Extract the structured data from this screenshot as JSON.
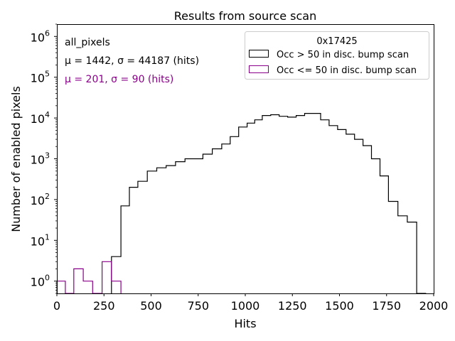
{
  "chart_data": {
    "type": "histogram",
    "title": "Results from source scan",
    "xlabel": "Hits",
    "ylabel": "Number of enabled pixels",
    "xlim": [
      0,
      2000
    ],
    "ylim": [
      0.5,
      2000000
    ],
    "yscale": "log",
    "x_ticks": [
      0,
      250,
      500,
      750,
      1000,
      1250,
      1500,
      1750,
      2000
    ],
    "x_tick_labels": [
      "0",
      "250",
      "500",
      "750",
      "1000",
      "1250",
      "1500",
      "1750",
      "2000"
    ],
    "y_tick_labels": [
      {
        "base": "10",
        "exp": "0",
        "value": 1
      },
      {
        "base": "10",
        "exp": "1",
        "value": 10
      },
      {
        "base": "10",
        "exp": "2",
        "value": 100
      },
      {
        "base": "10",
        "exp": "3",
        "value": 1000
      },
      {
        "base": "10",
        "exp": "4",
        "value": 10000
      },
      {
        "base": "10",
        "exp": "5",
        "value": 100000
      },
      {
        "base": "10",
        "exp": "6",
        "value": 1000000
      }
    ],
    "legend": {
      "title": "0x17425",
      "location": "top-right",
      "entries": [
        "Occ > 50 in disc. bump scan",
        "Occ <= 50 in disc. bump scan"
      ]
    },
    "annotations": {
      "label": "all_pixels",
      "stats_black": "μ = 1442, σ = 44187 (hits)",
      "stats_purple": "μ = 201, σ = 90 (hits)"
    },
    "series": [
      {
        "name": "Occ > 50 in disc. bump scan",
        "color": "#000000",
        "edges": [
          290,
          340,
          385,
          430,
          480,
          530,
          580,
          630,
          680,
          725,
          775,
          825,
          875,
          920,
          965,
          1010,
          1050,
          1090,
          1135,
          1180,
          1225,
          1270,
          1315,
          1355,
          1400,
          1445,
          1490,
          1535,
          1580,
          1625,
          1670,
          1715,
          1760,
          1810,
          1860,
          1910,
          1960
        ],
        "values": [
          4,
          70,
          200,
          280,
          500,
          600,
          680,
          850,
          1000,
          1000,
          1300,
          1750,
          2300,
          3500,
          6000,
          7500,
          9000,
          11500,
          12000,
          11000,
          10500,
          11500,
          13000,
          13000,
          9000,
          6500,
          5200,
          4000,
          3000,
          2100,
          1000,
          380,
          90,
          40,
          28,
          0.4
        ]
      },
      {
        "name": "Occ <= 50 in disc. bump scan",
        "color": "#8b008b",
        "edges": [
          0,
          45,
          90,
          140,
          190,
          240,
          290,
          340
        ],
        "values": [
          1,
          0.4,
          2,
          1,
          0.4,
          3,
          1
        ]
      }
    ]
  }
}
